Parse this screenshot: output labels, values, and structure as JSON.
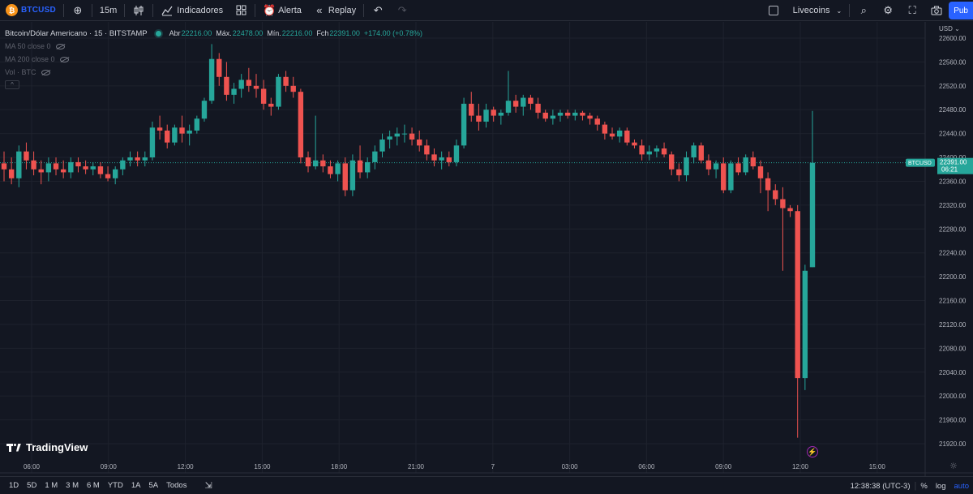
{
  "toolbar": {
    "symbol": "BTCUSD",
    "interval": "15m",
    "indicators_label": "Indicadores",
    "alert_label": "Alerta",
    "replay_label": "Replay",
    "layout_name": "Livecoins",
    "publish_label": "Pub"
  },
  "legend": {
    "title": "Bitcoin/Dólar Americano · 15 · BITSTAMP",
    "open_label": "Abr",
    "open": "22216.00",
    "high_label": "Máx.",
    "high": "22478.00",
    "low_label": "Mín.",
    "low": "22216.00",
    "close_label": "Fch",
    "close": "22391.00",
    "change": "+174.00 (+0.78%)",
    "indicators": [
      "MA 50 close 0",
      "MA 200 close 0",
      "Vol · BTC"
    ]
  },
  "price_axis": {
    "currency": "USD",
    "last_price": "22391.00",
    "countdown": "06:21",
    "last_symbol": "BTCUSD"
  },
  "brand": "TradingView",
  "bottombar": {
    "ranges": [
      "1D",
      "5D",
      "1 M",
      "3 M",
      "6 M",
      "YTD",
      "1A",
      "5A",
      "Todos"
    ],
    "clock": "12:38:38 (UTC-3)",
    "percent": "%",
    "log": "log",
    "auto": "auto"
  },
  "colors": {
    "up": "#26a69a",
    "down": "#ef5350",
    "background": "#131722",
    "accent": "#2962ff"
  },
  "chart_data": {
    "type": "candlestick",
    "y_ticks": [
      21920,
      21960,
      22000,
      22040,
      22080,
      22120,
      22160,
      22200,
      22240,
      22280,
      22320,
      22360,
      22400,
      22440,
      22480,
      22520,
      22560,
      22600
    ],
    "ylim": [
      21900,
      22620
    ],
    "x_ticks": [
      "06:00",
      "09:00",
      "12:00",
      "15:00",
      "18:00",
      "21:00",
      "7",
      "03:00",
      "06:00",
      "09:00",
      "12:00",
      "15:00"
    ],
    "grid": true,
    "candles": [
      [
        22390,
        22410,
        22360,
        22380
      ],
      [
        22380,
        22400,
        22355,
        22365
      ],
      [
        22365,
        22420,
        22350,
        22410
      ],
      [
        22410,
        22425,
        22380,
        22395
      ],
      [
        22395,
        22410,
        22370,
        22380
      ],
      [
        22380,
        22395,
        22355,
        22375
      ],
      [
        22375,
        22400,
        22360,
        22390
      ],
      [
        22390,
        22400,
        22370,
        22380
      ],
      [
        22380,
        22395,
        22365,
        22375
      ],
      [
        22375,
        22400,
        22365,
        22392
      ],
      [
        22392,
        22400,
        22375,
        22385
      ],
      [
        22385,
        22395,
        22372,
        22380
      ],
      [
        22380,
        22392,
        22370,
        22385
      ],
      [
        22385,
        22392,
        22365,
        22372
      ],
      [
        22372,
        22385,
        22360,
        22365
      ],
      [
        22365,
        22385,
        22355,
        22380
      ],
      [
        22380,
        22400,
        22370,
        22395
      ],
      [
        22395,
        22410,
        22385,
        22400
      ],
      [
        22400,
        22410,
        22385,
        22395
      ],
      [
        22395,
        22410,
        22385,
        22400
      ],
      [
        22400,
        22460,
        22395,
        22450
      ],
      [
        22450,
        22470,
        22430,
        22445
      ],
      [
        22445,
        22455,
        22415,
        22425
      ],
      [
        22425,
        22455,
        22420,
        22450
      ],
      [
        22450,
        22470,
        22425,
        22440
      ],
      [
        22440,
        22455,
        22420,
        22445
      ],
      [
        22445,
        22470,
        22440,
        22465
      ],
      [
        22465,
        22500,
        22460,
        22495
      ],
      [
        22495,
        22590,
        22490,
        22565
      ],
      [
        22565,
        22575,
        22520,
        22535
      ],
      [
        22535,
        22560,
        22495,
        22505
      ],
      [
        22505,
        22525,
        22490,
        22515
      ],
      [
        22515,
        22540,
        22500,
        22530
      ],
      [
        22530,
        22550,
        22510,
        22520
      ],
      [
        22520,
        22540,
        22500,
        22515
      ],
      [
        22515,
        22530,
        22480,
        22490
      ],
      [
        22490,
        22500,
        22470,
        22485
      ],
      [
        22485,
        22540,
        22480,
        22535
      ],
      [
        22535,
        22545,
        22510,
        22520
      ],
      [
        22520,
        22535,
        22500,
        22510
      ],
      [
        22510,
        22515,
        22390,
        22400
      ],
      [
        22400,
        22410,
        22375,
        22385
      ],
      [
        22385,
        22470,
        22380,
        22395
      ],
      [
        22395,
        22405,
        22375,
        22385
      ],
      [
        22385,
        22395,
        22365,
        22372
      ],
      [
        22372,
        22395,
        22360,
        22390
      ],
      [
        22390,
        22400,
        22335,
        22345
      ],
      [
        22345,
        22405,
        22335,
        22395
      ],
      [
        22395,
        22420,
        22365,
        22375
      ],
      [
        22375,
        22400,
        22365,
        22392
      ],
      [
        22392,
        22420,
        22380,
        22410
      ],
      [
        22410,
        22440,
        22400,
        22430
      ],
      [
        22430,
        22445,
        22415,
        22435
      ],
      [
        22435,
        22450,
        22420,
        22440
      ],
      [
        22440,
        22455,
        22425,
        22440
      ],
      [
        22440,
        22450,
        22420,
        22430
      ],
      [
        22430,
        22445,
        22410,
        22420
      ],
      [
        22420,
        22430,
        22395,
        22405
      ],
      [
        22405,
        22415,
        22385,
        22395
      ],
      [
        22395,
        22410,
        22380,
        22400
      ],
      [
        22400,
        22410,
        22385,
        22392
      ],
      [
        22392,
        22430,
        22385,
        22420
      ],
      [
        22420,
        22500,
        22415,
        22490
      ],
      [
        22490,
        22510,
        22460,
        22470
      ],
      [
        22470,
        22490,
        22445,
        22460
      ],
      [
        22460,
        22490,
        22450,
        22480
      ],
      [
        22480,
        22485,
        22460,
        22470
      ],
      [
        22470,
        22480,
        22455,
        22475
      ],
      [
        22475,
        22545,
        22470,
        22495
      ],
      [
        22495,
        22505,
        22475,
        22485
      ],
      [
        22485,
        22505,
        22470,
        22500
      ],
      [
        22500,
        22505,
        22480,
        22490
      ],
      [
        22490,
        22500,
        22465,
        22475
      ],
      [
        22475,
        22480,
        22460,
        22465
      ],
      [
        22465,
        22480,
        22455,
        22470
      ],
      [
        22470,
        22480,
        22460,
        22475
      ],
      [
        22475,
        22480,
        22465,
        22470
      ],
      [
        22470,
        22480,
        22462,
        22475
      ],
      [
        22475,
        22478,
        22462,
        22470
      ],
      [
        22470,
        22475,
        22455,
        22465
      ],
      [
        22465,
        22470,
        22445,
        22455
      ],
      [
        22455,
        22460,
        22430,
        22440
      ],
      [
        22440,
        22450,
        22430,
        22435
      ],
      [
        22435,
        22450,
        22425,
        22445
      ],
      [
        22445,
        22450,
        22420,
        22425
      ],
      [
        22425,
        22430,
        22415,
        22420
      ],
      [
        22420,
        22430,
        22395,
        22405
      ],
      [
        22405,
        22420,
        22395,
        22410
      ],
      [
        22410,
        22420,
        22400,
        22415
      ],
      [
        22415,
        22425,
        22400,
        22405
      ],
      [
        22405,
        22410,
        22370,
        22380
      ],
      [
        22380,
        22390,
        22360,
        22370
      ],
      [
        22370,
        22410,
        22360,
        22400
      ],
      [
        22400,
        22425,
        22390,
        22420
      ],
      [
        22420,
        22425,
        22390,
        22395
      ],
      [
        22395,
        22405,
        22370,
        22380
      ],
      [
        22380,
        22395,
        22365,
        22390
      ],
      [
        22390,
        22400,
        22340,
        22345
      ],
      [
        22345,
        22395,
        22340,
        22390
      ],
      [
        22390,
        22400,
        22370,
        22375
      ],
      [
        22375,
        22405,
        22370,
        22400
      ],
      [
        22400,
        22410,
        22380,
        22385
      ],
      [
        22385,
        22395,
        22340,
        22365
      ],
      [
        22365,
        22375,
        22310,
        22345
      ],
      [
        22345,
        22355,
        22320,
        22330
      ],
      [
        22330,
        22350,
        22210,
        22315
      ],
      [
        22315,
        22320,
        22300,
        22310
      ],
      [
        22310,
        22320,
        21930,
        22030
      ],
      [
        22030,
        22220,
        22010,
        22210
      ],
      [
        22216,
        22478,
        22216,
        22391
      ]
    ]
  }
}
